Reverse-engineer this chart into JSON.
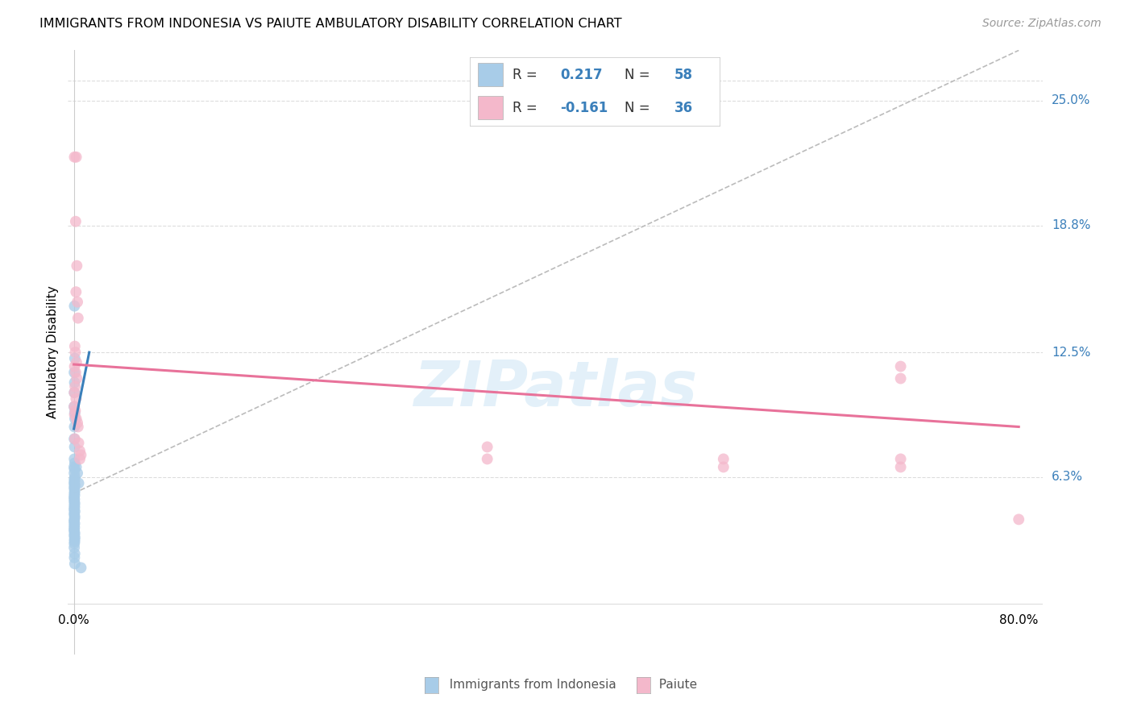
{
  "title": "IMMIGRANTS FROM INDONESIA VS PAIUTE AMBULATORY DISABILITY CORRELATION CHART",
  "source": "Source: ZipAtlas.com",
  "ylabel": "Ambulatory Disability",
  "ytick_labels": [
    "25.0%",
    "18.8%",
    "12.5%",
    "6.3%"
  ],
  "ytick_values": [
    0.25,
    0.188,
    0.125,
    0.063
  ],
  "xmin": -0.005,
  "xmax": 0.82,
  "ymin": -0.025,
  "ymax": 0.275,
  "watermark": "ZIPatlas",
  "blue_color": "#a8cce8",
  "pink_color": "#f4b8cb",
  "blue_line_color": "#3a7fba",
  "pink_line_color": "#e8729a",
  "grid_color": "#dddddd",
  "blue_scatter": [
    [
      0.0005,
      0.148
    ],
    [
      0.0008,
      0.122
    ],
    [
      0.0003,
      0.115
    ],
    [
      0.0006,
      0.11
    ],
    [
      0.0004,
      0.105
    ],
    [
      0.0002,
      0.098
    ],
    [
      0.0007,
      0.095
    ],
    [
      0.0009,
      0.092
    ],
    [
      0.0005,
      0.088
    ],
    [
      0.0003,
      0.082
    ],
    [
      0.0006,
      0.078
    ],
    [
      0.0004,
      0.072
    ],
    [
      0.0008,
      0.07
    ],
    [
      0.0002,
      0.068
    ],
    [
      0.0005,
      0.067
    ],
    [
      0.0003,
      0.065
    ],
    [
      0.0007,
      0.063
    ],
    [
      0.0004,
      0.062
    ],
    [
      0.0006,
      0.061
    ],
    [
      0.0002,
      0.06
    ],
    [
      0.0008,
      0.059
    ],
    [
      0.0003,
      0.058
    ],
    [
      0.0005,
      0.057
    ],
    [
      0.0007,
      0.056
    ],
    [
      0.0004,
      0.055
    ],
    [
      0.0006,
      0.054
    ],
    [
      0.0002,
      0.053
    ],
    [
      0.0005,
      0.052
    ],
    [
      0.0003,
      0.051
    ],
    [
      0.0007,
      0.05
    ],
    [
      0.0004,
      0.049
    ],
    [
      0.0006,
      0.048
    ],
    [
      0.0002,
      0.047
    ],
    [
      0.0008,
      0.046
    ],
    [
      0.0003,
      0.045
    ],
    [
      0.0005,
      0.044
    ],
    [
      0.0007,
      0.043
    ],
    [
      0.0004,
      0.042
    ],
    [
      0.0002,
      0.041
    ],
    [
      0.0006,
      0.04
    ],
    [
      0.0003,
      0.039
    ],
    [
      0.0005,
      0.038
    ],
    [
      0.0002,
      0.037
    ],
    [
      0.0004,
      0.036
    ],
    [
      0.0007,
      0.035
    ],
    [
      0.0003,
      0.034
    ],
    [
      0.0008,
      0.033
    ],
    [
      0.0005,
      0.032
    ],
    [
      0.0006,
      0.031
    ],
    [
      0.0004,
      0.03
    ],
    [
      0.0003,
      0.028
    ],
    [
      0.0007,
      0.025
    ],
    [
      0.0005,
      0.023
    ],
    [
      0.0008,
      0.02
    ],
    [
      0.002,
      0.068
    ],
    [
      0.003,
      0.065
    ],
    [
      0.004,
      0.06
    ],
    [
      0.006,
      0.018
    ]
  ],
  "pink_scatter": [
    [
      0.0005,
      0.222
    ],
    [
      0.002,
      0.222
    ],
    [
      0.0015,
      0.19
    ],
    [
      0.0025,
      0.168
    ],
    [
      0.0018,
      0.155
    ],
    [
      0.003,
      0.15
    ],
    [
      0.0035,
      0.142
    ],
    [
      0.0008,
      0.128
    ],
    [
      0.0012,
      0.125
    ],
    [
      0.0022,
      0.12
    ],
    [
      0.0006,
      0.118
    ],
    [
      0.0015,
      0.115
    ],
    [
      0.0025,
      0.112
    ],
    [
      0.001,
      0.108
    ],
    [
      0.0004,
      0.105
    ],
    [
      0.0018,
      0.102
    ],
    [
      0.0003,
      0.098
    ],
    [
      0.0012,
      0.096
    ],
    [
      0.0006,
      0.094
    ],
    [
      0.002,
      0.092
    ],
    [
      0.003,
      0.09
    ],
    [
      0.0035,
      0.088
    ],
    [
      0.0008,
      0.082
    ],
    [
      0.004,
      0.08
    ],
    [
      0.005,
      0.076
    ],
    [
      0.006,
      0.074
    ],
    [
      0.005,
      0.072
    ],
    [
      0.35,
      0.078
    ],
    [
      0.35,
      0.072
    ],
    [
      0.55,
      0.072
    ],
    [
      0.55,
      0.068
    ],
    [
      0.7,
      0.118
    ],
    [
      0.7,
      0.112
    ],
    [
      0.7,
      0.072
    ],
    [
      0.7,
      0.068
    ],
    [
      0.8,
      0.042
    ]
  ],
  "blue_trendline_x": [
    0.0,
    0.013
  ],
  "blue_trendline_y": [
    0.087,
    0.125
  ],
  "pink_trendline_x": [
    0.0,
    0.8
  ],
  "pink_trendline_y": [
    0.119,
    0.088
  ],
  "diag_line_x": [
    0.0,
    0.8
  ],
  "diag_line_y": [
    0.055,
    0.275
  ]
}
